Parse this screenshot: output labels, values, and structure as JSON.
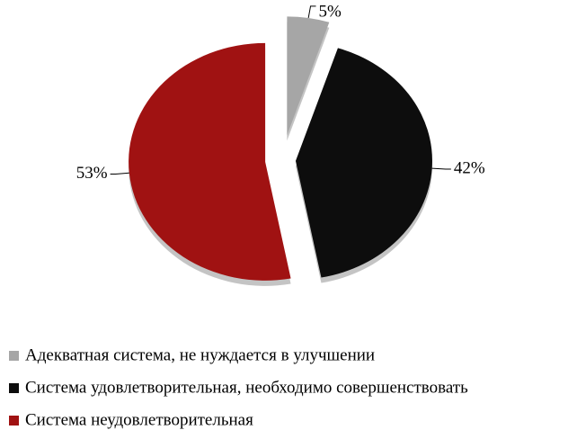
{
  "chart_data": {
    "type": "pie",
    "categories": [
      "Адекватная система, не нуждается в улучшении",
      "Система удовлетворительная, необходимо совершенствовать",
      "Система неудовлетворительная"
    ],
    "values": [
      5,
      42,
      53
    ],
    "value_labels": [
      "5%",
      "42%",
      "53%"
    ],
    "colors": [
      "#a6a6a6",
      "#0d0d0d",
      "#a01212"
    ],
    "legend": "bottom"
  }
}
